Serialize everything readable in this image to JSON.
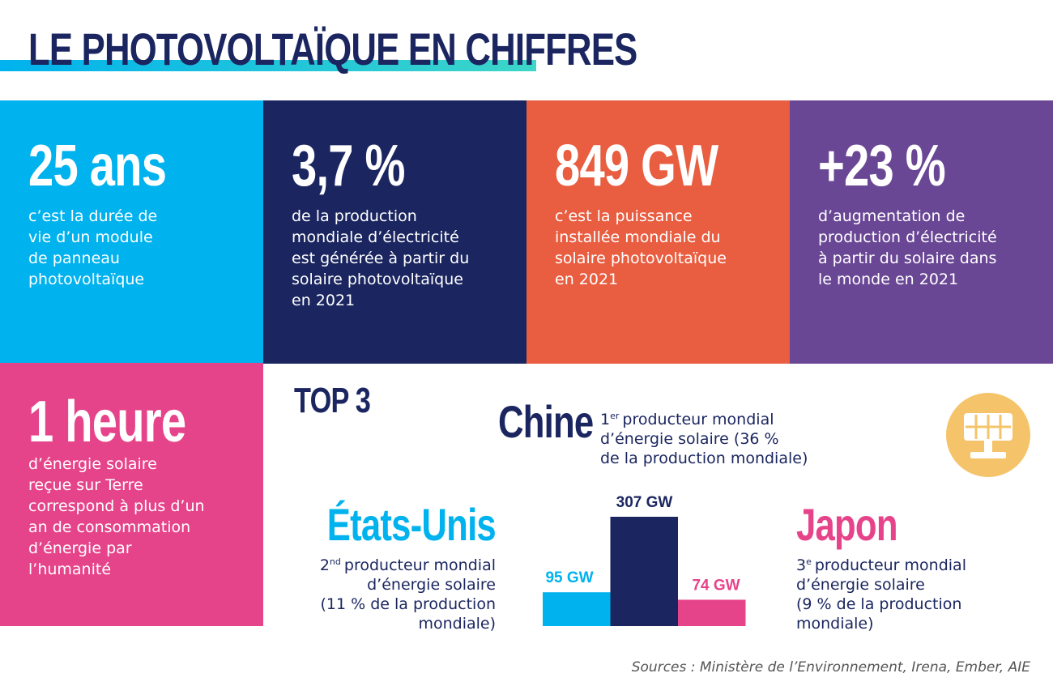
{
  "title": "LE PHOTOVOLTAÏQUE EN CHIFFRES",
  "tiles": [
    {
      "headline": "25 ans",
      "color": "#00b2ee",
      "lines": [
        "c’est la durée de",
        "vie d’un module",
        "de panneau",
        "photovoltaïque"
      ]
    },
    {
      "headline": "3,7 %",
      "color": "#1b2660",
      "lines": [
        "de la production",
        "mondiale d’électricité",
        "est générée à partir du",
        "solaire photovoltaïque",
        "en 2021"
      ]
    },
    {
      "headline": "849 GW",
      "color": "#e95d40",
      "lines": [
        "c’est la puissance",
        "installée mondiale du",
        "solaire photovoltaïque",
        "en 2021"
      ]
    },
    {
      "headline": "+23 %",
      "color": "#6a4795",
      "lines": [
        "d’augmentation de",
        "production d’électricité",
        "à partir du solaire dans",
        "le monde en 2021"
      ]
    },
    {
      "headline": "1 heure",
      "color": "#e6448a",
      "lines": [
        "d’énergie solaire",
        "reçue sur Terre",
        "correspond à plus d’un",
        "an de consommation",
        "d’énergie par",
        "l’humanité"
      ]
    }
  ],
  "top3": {
    "title": "TOP 3",
    "producers": [
      {
        "name": "Chine",
        "color": "#1b2660",
        "value": 307,
        "value_label": "307 GW",
        "rank": "1",
        "rank_suffix": "er",
        "lines": [
          "producteur mondial",
          "d’énergie solaire (36 %",
          "de la production mondiale)"
        ]
      },
      {
        "name": "États-Unis",
        "color": "#00b2ee",
        "value": 95,
        "value_label": "95 GW",
        "rank": "2",
        "rank_suffix": "nd",
        "lines": [
          "producteur mondial",
          "d’énergie solaire",
          "(11 % de la production",
          "mondiale)"
        ]
      },
      {
        "name": "Japon",
        "color": "#e6448a",
        "value": 74,
        "value_label": "74 GW",
        "rank": "3",
        "rank_suffix": "e",
        "lines": [
          "producteur mondial",
          "d’énergie solaire",
          "(9 % de la production",
          "mondiale)"
        ]
      }
    ]
  },
  "sources": "Sources : Ministère de l’Environnement, Irena, Ember, AIE"
}
